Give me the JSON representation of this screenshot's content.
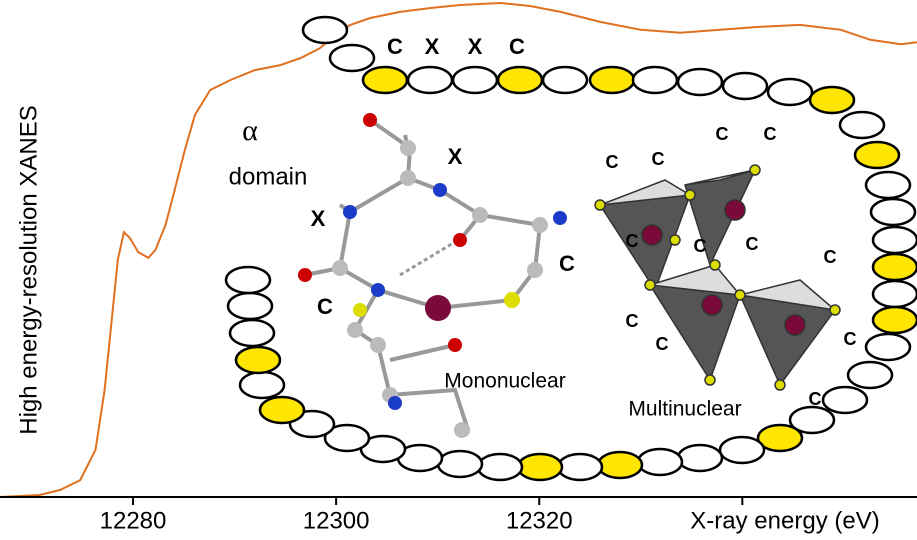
{
  "chart_data": {
    "type": "line",
    "ylabel": "High energy-resolution XANES",
    "xlabel": "X-ray energy (eV)",
    "xlim": [
      12266.9,
      12357.2
    ],
    "ylim": [
      0,
      1
    ],
    "xticks": [
      12280,
      12300,
      12320
    ],
    "xticks_unlabeled": [
      12340
    ],
    "color": "#e07020",
    "x": [
      12266.9,
      12270.8,
      12272.8,
      12274.8,
      12276.3,
      12277.2,
      12277.9,
      12278.5,
      12279.1,
      12279.7,
      12280.5,
      12281.5,
      12282.2,
      12283.2,
      12284.1,
      12285.1,
      12286.1,
      12287.6,
      12289.6,
      12292.0,
      12294.5,
      12296.5,
      12298.4,
      12299.9,
      12301.4,
      12303.4,
      12306.3,
      12309.3,
      12312.2,
      12316.2,
      12319.1,
      12322.1,
      12326.0,
      12330.0,
      12333.9,
      12337.8,
      12341.8,
      12345.7,
      12349.7,
      12352.6,
      12355.6,
      12357.2
    ],
    "values": [
      0,
      0.004,
      0.014,
      0.034,
      0.095,
      0.215,
      0.356,
      0.477,
      0.533,
      0.521,
      0.493,
      0.481,
      0.497,
      0.547,
      0.618,
      0.698,
      0.769,
      0.819,
      0.839,
      0.859,
      0.869,
      0.883,
      0.903,
      0.93,
      0.95,
      0.964,
      0.976,
      0.984,
      0.99,
      0.994,
      0.988,
      0.976,
      0.956,
      0.94,
      0.934,
      0.94,
      0.946,
      0.95,
      0.94,
      0.92,
      0.911,
      0.915
    ]
  },
  "diagram": {
    "alpha": "α",
    "domain": "domain",
    "sequence_labels": [
      "C",
      "X",
      "X",
      "C",
      "X",
      "X",
      "C",
      "C"
    ],
    "cluster_labels": [
      "C",
      "C",
      "C",
      "C",
      "C",
      "C",
      "C",
      "C",
      "C",
      "C",
      "C",
      "C"
    ],
    "mononuclear": "Mononuclear",
    "multinuclear": "Multinuclear"
  }
}
